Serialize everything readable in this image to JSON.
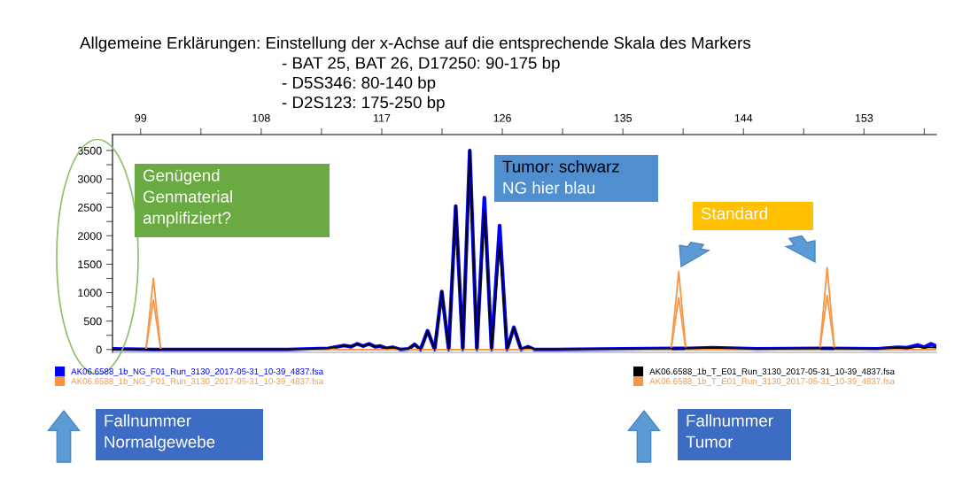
{
  "chart_data": {
    "type": "line",
    "title": "Allgemeine Erklärungen: Einstellung der x-Achse auf die entsprechende Skala des Markers",
    "subtitle": "- BAT 25, BAT 26, D17250: 90-175 bp\n- D5S346: 80-140 bp\n- D2S123: 175-250 bp",
    "xlim": [
      96.9,
      158.4
    ],
    "xticks": [
      99,
      {
        "value": 103.5,
        "label": null
      },
      108,
      {
        "value": 112.5,
        "label": null
      },
      117,
      {
        "value": 121.5,
        "label": null
      },
      126,
      {
        "value": 130.5,
        "label": null
      },
      135,
      {
        "value": 139.5,
        "label": null
      },
      144,
      {
        "value": 148.5,
        "label": null
      },
      153,
      {
        "value": 157.5,
        "label": null
      }
    ],
    "ylim": [
      -50,
      3780
    ],
    "yticks": [
      0,
      {
        "value": 250,
        "label": null
      },
      500,
      {
        "value": 750,
        "label": null
      },
      1000,
      {
        "value": 1250,
        "label": null
      },
      1500,
      {
        "value": 1750,
        "label": null
      },
      2000,
      {
        "value": 2250,
        "label": null
      },
      2500,
      {
        "value": 2750,
        "label": null
      },
      3000,
      {
        "value": 3250,
        "label": null
      },
      3500
    ],
    "grid": false,
    "legend": "bottom",
    "marker": "none",
    "line_style": "solid",
    "series": [
      {
        "name": "AK06.6588_1b_NG_F01_Run_3130_2017-05-31_10-39_4837.fsa",
        "color": "#0000ff",
        "x": [
          96.9,
          100,
          105,
          110,
          113,
          114.2,
          114.7,
          115.17,
          115.6,
          116.05,
          116.5,
          116.9,
          117.35,
          117.8,
          118.4,
          119.0,
          119.45,
          119.9,
          120.42,
          120.95,
          121.48,
          122.0,
          122.52,
          123.05,
          123.57,
          124.1,
          124.66,
          125.2,
          125.8,
          126.35,
          126.86,
          127.4,
          127.92,
          128.4,
          130,
          135,
          140,
          141.7,
          145,
          150,
          154,
          155.5,
          156.2,
          157,
          157.5,
          158,
          158.4
        ],
        "values": [
          10,
          0,
          0,
          0,
          20,
          70,
          50,
          100,
          60,
          100,
          50,
          60,
          20,
          40,
          0,
          10,
          90,
          0,
          330,
          0,
          1020,
          0,
          2520,
          0,
          3500,
          0,
          2670,
          0,
          2180,
          0,
          390,
          0,
          50,
          0,
          0,
          10,
          20,
          30,
          10,
          20,
          10,
          40,
          30,
          80,
          40,
          100,
          60
        ]
      },
      {
        "name": "AK06.6588_1b_NG_F01_Run_3130_2017-05-31_10-39_4837.fsa",
        "color": "#f79646",
        "x": [
          96.9,
          99.4,
          99.95,
          100.5,
          105,
          113,
          113.3,
          113.6,
          120,
          130,
          138.6,
          139.17,
          139.7,
          145,
          149.7,
          150.25,
          150.8,
          158.4
        ],
        "values": [
          0,
          0,
          1250,
          0,
          0,
          0,
          20,
          0,
          0,
          0,
          0,
          1370,
          0,
          0,
          0,
          1440,
          0,
          0
        ]
      },
      {
        "name": "AK06.6588_1b_T_E01_Run_3130_2017-05-31_10-39_4837.fsa",
        "color": "#000000",
        "x": [
          96.9,
          100,
          105,
          110,
          113,
          114.2,
          114.7,
          115.17,
          115.6,
          116.05,
          116.5,
          116.9,
          117.35,
          117.8,
          118.4,
          119.0,
          119.45,
          119.9,
          120.42,
          120.95,
          121.48,
          122.0,
          122.52,
          123.05,
          123.57,
          124.1,
          124.66,
          125.2,
          125.8,
          126.35,
          126.86,
          127.4,
          127.92,
          128.4,
          130,
          135,
          140,
          141.7,
          145,
          150,
          154,
          155.5,
          156.2,
          157,
          157.5,
          158,
          158.4
        ],
        "values": [
          0,
          0,
          0,
          0,
          20,
          70,
          50,
          100,
          60,
          100,
          50,
          60,
          20,
          40,
          0,
          10,
          90,
          0,
          330,
          0,
          1020,
          0,
          2520,
          0,
          3500,
          0,
          2440,
          0,
          1850,
          0,
          390,
          0,
          50,
          0,
          0,
          10,
          20,
          30,
          10,
          20,
          10,
          30,
          20,
          50,
          30,
          40,
          30
        ]
      },
      {
        "name": "AK06.6588_1b_T_E01_Run_3130_2017-05-31_10-39_4837.fsa",
        "color": "#f79646",
        "x": [
          96.9,
          99.4,
          99.95,
          100.5,
          105,
          120,
          130,
          138.6,
          139.17,
          139.7,
          145,
          149.7,
          150.25,
          150.8,
          158.4
        ],
        "values": [
          0,
          0,
          870,
          0,
          0,
          0,
          0,
          0,
          910,
          0,
          0,
          0,
          950,
          0,
          0
        ]
      }
    ],
    "annotations": [
      "Genügend\nGenmaterial\namplifiziert?",
      "Tumor: schwarz\nNG hier blau",
      "Standard",
      "Fallnummer\nNormalgewebe",
      "Fallnummer\nTumor"
    ]
  }
}
